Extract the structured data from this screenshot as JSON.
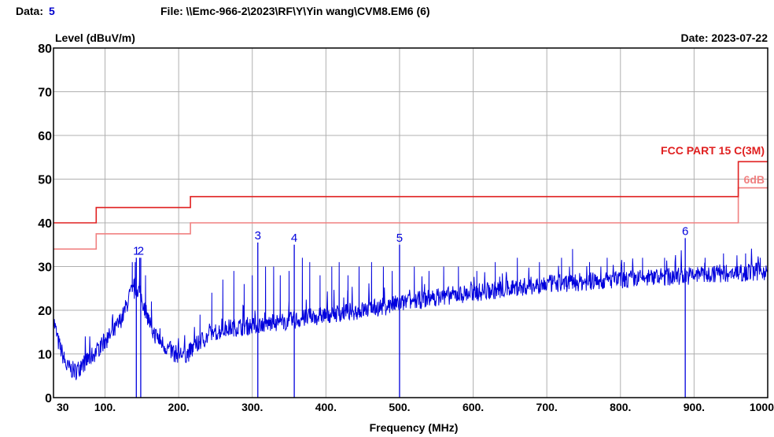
{
  "header": {
    "data_label": "Data:",
    "data_value": "5",
    "file_label": "File: \\\\Emc-966-2\\2023\\RF\\Y\\Yin wang\\CVM8.EM6  (6)",
    "date_label": "Date: 2023-07-22"
  },
  "colors": {
    "trace": "#0000dd",
    "limit": "#e02020",
    "margin": "#f08080",
    "grid": "#b0b0b0",
    "data_value": "#0000cc"
  },
  "chart_data": {
    "type": "line",
    "title": "",
    "xlabel": "Frequency (MHz)",
    "ylabel": "Level (dBuV/m)",
    "xlim": [
      30,
      1000
    ],
    "ylim": [
      0,
      80
    ],
    "grid": true,
    "x_ticks": [
      30,
      100,
      200,
      300,
      400,
      500,
      600,
      700,
      800,
      900,
      1000
    ],
    "x_tick_labels": [
      "30",
      "100.",
      "200.",
      "300.",
      "400.",
      "500.",
      "600.",
      "700.",
      "800.",
      "900.",
      "1000"
    ],
    "y_ticks": [
      0,
      10,
      20,
      30,
      40,
      50,
      60,
      70,
      80
    ],
    "y_tick_labels": [
      "0",
      "10",
      "20",
      "30",
      "40",
      "50",
      "60",
      "70",
      "80"
    ],
    "limit_line": {
      "name": "FCC PART 15 C(3M)",
      "points": [
        [
          30,
          40
        ],
        [
          88,
          40
        ],
        [
          88,
          43.5
        ],
        [
          216,
          43.5
        ],
        [
          216,
          46
        ],
        [
          960,
          46
        ],
        [
          960,
          54
        ],
        [
          1000,
          54
        ]
      ]
    },
    "margin_line": {
      "name": "6dB",
      "points": [
        [
          30,
          34
        ],
        [
          88,
          34
        ],
        [
          88,
          37.5
        ],
        [
          216,
          37.5
        ],
        [
          216,
          40
        ],
        [
          960,
          40
        ],
        [
          960,
          48
        ],
        [
          1000,
          48
        ]
      ]
    },
    "trace_envelope": [
      [
        30,
        18
      ],
      [
        36,
        13
      ],
      [
        42,
        10
      ],
      [
        48,
        7
      ],
      [
        60,
        6
      ],
      [
        72,
        8
      ],
      [
        85,
        10
      ],
      [
        100,
        13
      ],
      [
        112,
        15
      ],
      [
        125,
        19
      ],
      [
        135,
        24
      ],
      [
        145,
        25
      ],
      [
        155,
        20
      ],
      [
        165,
        15
      ],
      [
        180,
        12
      ],
      [
        195,
        10
      ],
      [
        212,
        10
      ],
      [
        230,
        13
      ],
      [
        250,
        15
      ],
      [
        270,
        16
      ],
      [
        300,
        16.5
      ],
      [
        350,
        17.5
      ],
      [
        400,
        19
      ],
      [
        450,
        20
      ],
      [
        500,
        21.5
      ],
      [
        550,
        23
      ],
      [
        600,
        24
      ],
      [
        650,
        25
      ],
      [
        700,
        26
      ],
      [
        750,
        26.5
      ],
      [
        800,
        27
      ],
      [
        850,
        27.5
      ],
      [
        900,
        28
      ],
      [
        950,
        28.5
      ],
      [
        1000,
        29
      ]
    ],
    "spikes": [
      [
        103,
        15
      ],
      [
        118,
        16
      ],
      [
        137,
        31
      ],
      [
        141,
        31
      ],
      [
        147,
        32
      ],
      [
        155,
        28
      ],
      [
        163,
        22
      ],
      [
        229,
        19
      ],
      [
        245,
        24
      ],
      [
        260,
        27
      ],
      [
        275,
        29
      ],
      [
        289,
        26
      ],
      [
        300,
        28
      ],
      [
        318,
        30
      ],
      [
        329,
        30
      ],
      [
        338,
        28
      ],
      [
        350,
        29
      ],
      [
        368,
        32
      ],
      [
        378,
        31
      ],
      [
        392,
        28
      ],
      [
        408,
        30
      ],
      [
        418,
        31
      ],
      [
        430,
        28
      ],
      [
        445,
        30
      ],
      [
        462,
        31
      ],
      [
        478,
        30
      ],
      [
        490,
        29
      ],
      [
        520,
        30
      ],
      [
        540,
        29
      ],
      [
        560,
        30
      ],
      [
        580,
        30
      ],
      [
        605,
        29
      ],
      [
        630,
        31
      ],
      [
        660,
        32
      ],
      [
        690,
        31
      ],
      [
        720,
        32
      ],
      [
        735,
        34
      ],
      [
        758,
        31
      ],
      [
        782,
        32
      ],
      [
        805,
        31
      ],
      [
        830,
        32
      ],
      [
        860,
        32
      ],
      [
        915,
        32
      ],
      [
        940,
        33
      ],
      [
        970,
        33
      ],
      [
        990,
        32
      ]
    ],
    "markers": [
      {
        "label": "1",
        "x": 142.5,
        "y": 32
      },
      {
        "label": "2",
        "x": 148.5,
        "y": 32
      },
      {
        "label": "3",
        "x": 307.5,
        "y": 35.5
      },
      {
        "label": "4",
        "x": 357.0,
        "y": 35.0
      },
      {
        "label": "5",
        "x": 500.0,
        "y": 35.0
      },
      {
        "label": "6",
        "x": 888.0,
        "y": 36.5
      }
    ]
  }
}
